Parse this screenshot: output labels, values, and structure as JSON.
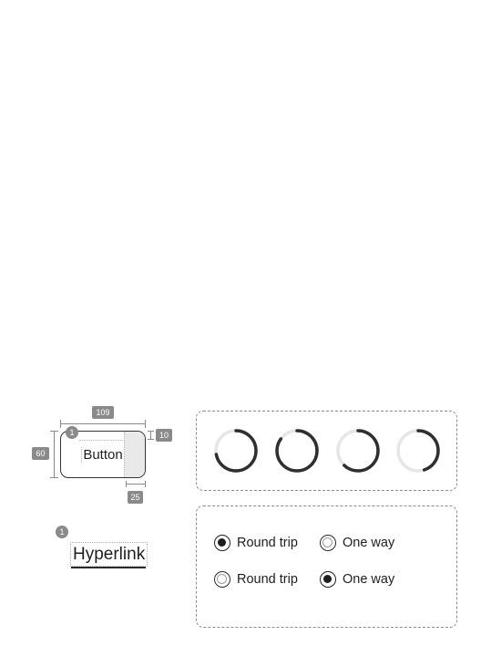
{
  "button_spec": {
    "width_label": "109",
    "height_label": "60",
    "top_padding_label": "10",
    "right_padding_label": "25",
    "marker": "1",
    "label": "Button"
  },
  "hyperlink_spec": {
    "marker": "1",
    "label": "Hyperlink"
  },
  "progress_rings": {
    "items": [
      {
        "name": "ring-1",
        "progress": 0.72
      },
      {
        "name": "ring-2",
        "progress": 0.85
      },
      {
        "name": "ring-3",
        "progress": 0.62
      },
      {
        "name": "ring-4",
        "progress": 0.45
      }
    ],
    "track_color": "#e6e6e6",
    "fill_color": "#2f2f2f"
  },
  "radio_groups": [
    {
      "options": [
        {
          "label": "Round trip",
          "checked": true
        },
        {
          "label": "One way",
          "checked": false
        }
      ]
    },
    {
      "options": [
        {
          "label": "Round trip",
          "checked": false
        },
        {
          "label": "One way",
          "checked": true
        }
      ]
    }
  ]
}
